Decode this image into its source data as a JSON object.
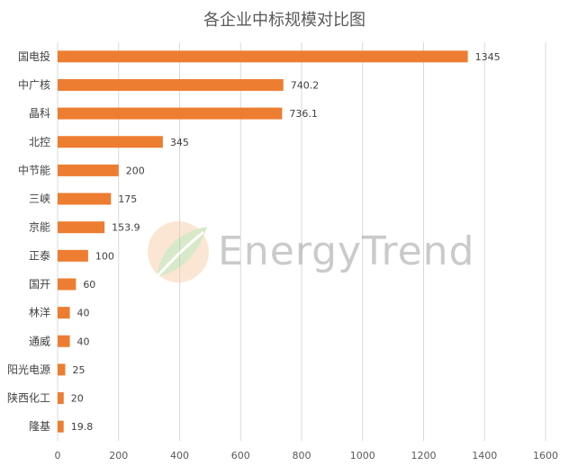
{
  "chart_data": {
    "type": "bar",
    "orientation": "horizontal",
    "title": "各企业中标规模对比图",
    "categories": [
      "国电投",
      "中广核",
      "晶科",
      "北控",
      "中节能",
      "三峡",
      "京能",
      "正泰",
      "国开",
      "林洋",
      "通威",
      "阳光电源",
      "陕西化工",
      "隆基"
    ],
    "values": [
      1345,
      740.2,
      736.1,
      345,
      200,
      175,
      153.9,
      100,
      60,
      40,
      40,
      25,
      20,
      19.8
    ],
    "value_labels": [
      "1345",
      "740.2",
      "736.1",
      "345",
      "200",
      "175",
      "153.9",
      "100",
      "60",
      "40",
      "40",
      "25",
      "20",
      "19.8"
    ],
    "xlim": [
      0,
      1600
    ],
    "xticks": [
      0,
      200,
      400,
      600,
      800,
      1000,
      1200,
      1400,
      1600
    ],
    "grid": true,
    "bar_color": "#ed7d31"
  },
  "watermark": {
    "text": "EnergyTrend",
    "icon": "leaf-logo-icon"
  }
}
